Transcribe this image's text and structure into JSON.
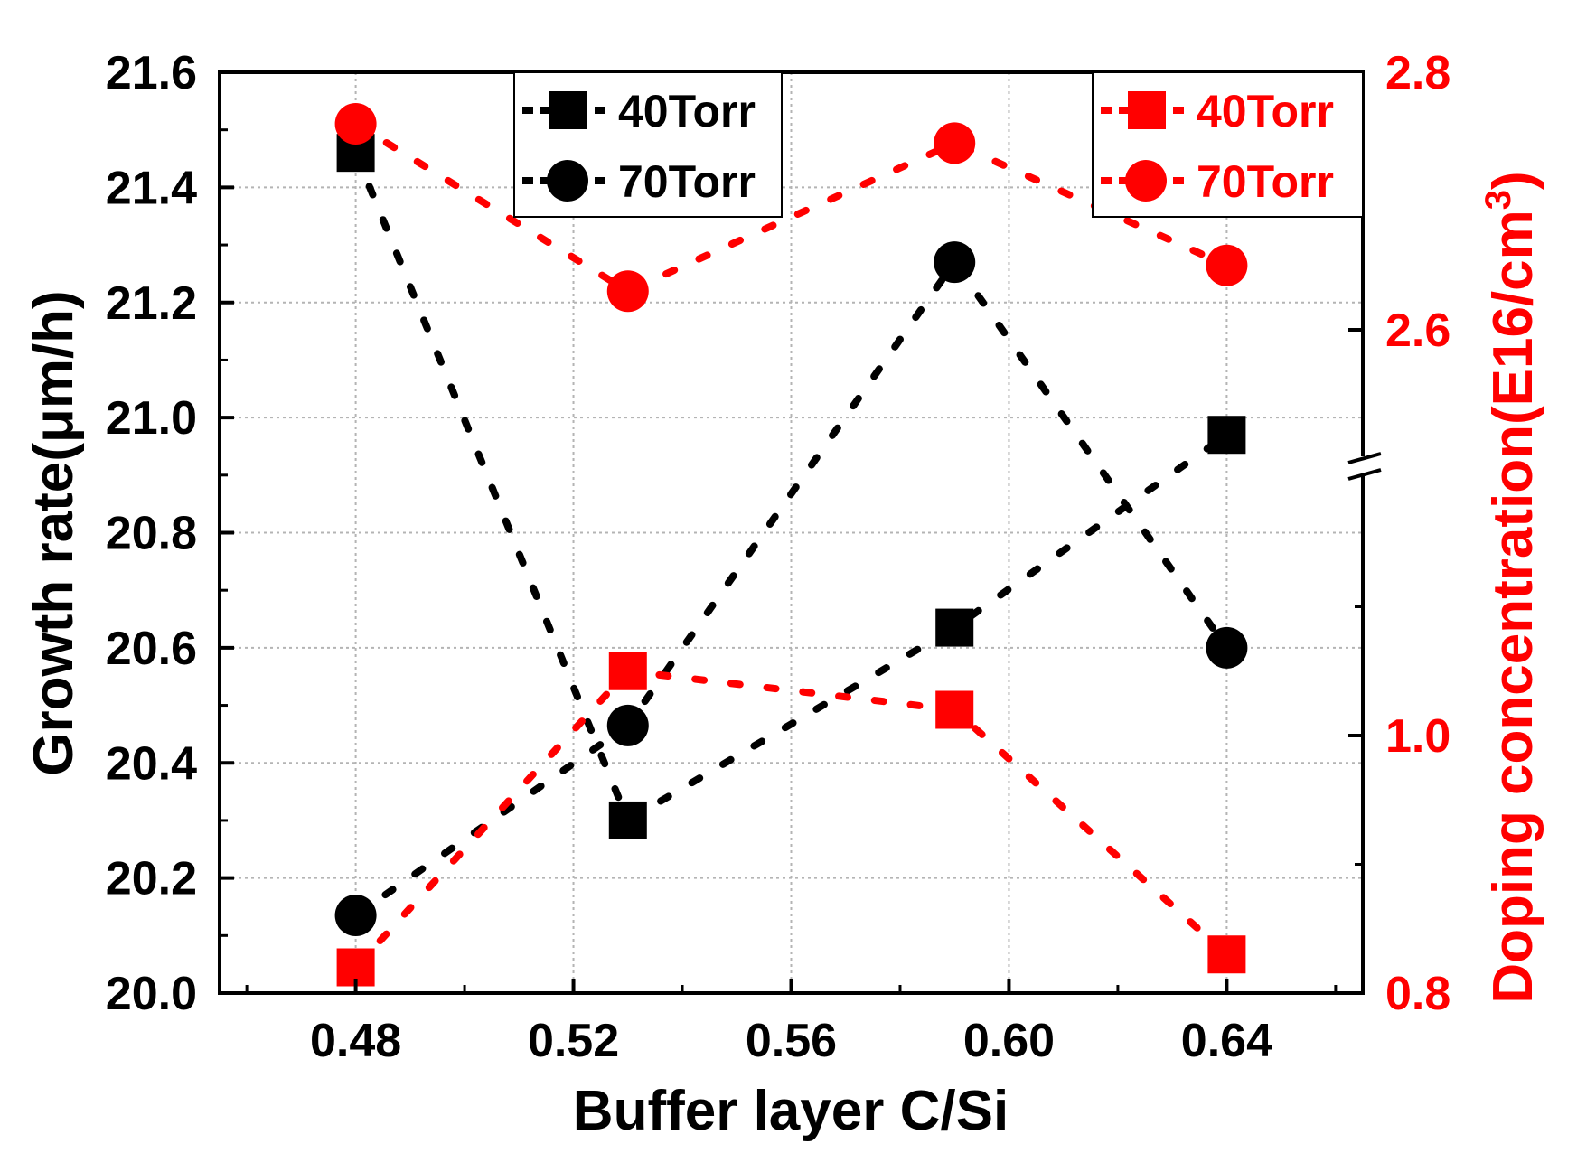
{
  "chart_data": {
    "type": "scatter",
    "title": "",
    "xlabel": "Buffer layer C/Si",
    "ylabel_left": "Growth rate(μm/h)",
    "ylabel_right": "Doping concentration(E16/cm",
    "ylabel_right_superscript": "3",
    "ylabel_right_close": ")",
    "x_ticks": [
      "0.48",
      "0.52",
      "0.56",
      "0.60",
      "0.64"
    ],
    "x_tick_values": [
      0.48,
      0.52,
      0.56,
      0.6,
      0.64
    ],
    "xlim": [
      0.455,
      0.665
    ],
    "y_left_ticks": [
      "20.0",
      "20.2",
      "20.4",
      "20.6",
      "20.8",
      "21.0",
      "21.2",
      "21.4",
      "21.6"
    ],
    "y_left_tick_values": [
      20.0,
      20.2,
      20.4,
      20.6,
      20.8,
      21.0,
      21.2,
      21.4,
      21.6
    ],
    "ylim_left": [
      20.0,
      21.6
    ],
    "y_right_ticks": [
      "0.8",
      "1.0",
      "2.6",
      "2.8"
    ],
    "y_right_tick_values": [
      0.8,
      1.0,
      2.6,
      2.8
    ],
    "y_right_axis_break": "between 1.0 and 2.6",
    "grid": true,
    "colors": {
      "growth": "#000000",
      "doping": "#ff0000"
    },
    "series": [
      {
        "name": "40Torr",
        "axis": "left",
        "marker": "square",
        "color": "#000000",
        "x": [
          0.48,
          0.53,
          0.59,
          0.64
        ],
        "values": [
          21.46,
          20.3,
          20.635,
          20.97
        ]
      },
      {
        "name": "70Torr",
        "axis": "left",
        "marker": "circle",
        "color": "#000000",
        "x": [
          0.48,
          0.53,
          0.59,
          0.64
        ],
        "values": [
          20.135,
          20.465,
          21.27,
          20.6
        ]
      },
      {
        "name": "40Torr",
        "axis": "right",
        "marker": "square",
        "color": "#ff0000",
        "x": [
          0.48,
          0.53,
          0.59,
          0.64
        ],
        "values": [
          0.82,
          1.05,
          1.02,
          0.83
        ]
      },
      {
        "name": "70Torr",
        "axis": "right",
        "marker": "circle",
        "color": "#ff0000",
        "x": [
          0.48,
          0.53,
          0.59,
          0.64
        ],
        "values": [
          2.76,
          2.63,
          2.745,
          2.65
        ]
      }
    ],
    "legend_left": {
      "placement": "top-center",
      "entries": [
        "40Torr",
        "70Torr"
      ]
    },
    "legend_right": {
      "placement": "top-right",
      "entries": [
        "40Torr",
        "70Torr"
      ]
    }
  }
}
